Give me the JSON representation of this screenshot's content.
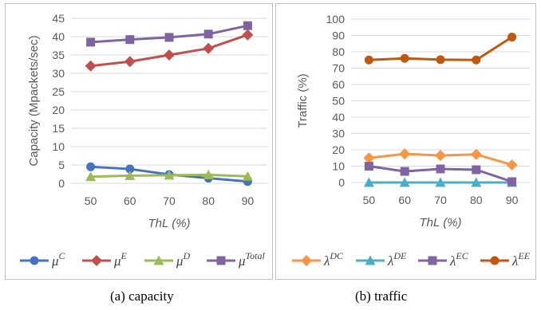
{
  "chart_data": [
    {
      "type": "line",
      "xlabel": "ThL (%)",
      "ylabel": "Capacity (Mpackets/sec)",
      "categories": [
        "50",
        "60",
        "70",
        "80",
        "90"
      ],
      "ylim": [
        0,
        45
      ],
      "yticks": [
        "0",
        "5",
        "10",
        "15",
        "20",
        "25",
        "30",
        "35",
        "40",
        "45"
      ],
      "grid": true,
      "legend": "bottom",
      "series": [
        {
          "name": "μ",
          "sup": "C",
          "color": "#4472C4",
          "marker": "circle",
          "values": [
            4.5,
            3.9,
            2.4,
            1.4,
            0.5
          ]
        },
        {
          "name": "μ",
          "sup": "E",
          "color": "#C0504D",
          "marker": "diamond",
          "values": [
            32.0,
            33.2,
            35.0,
            36.8,
            40.5
          ]
        },
        {
          "name": "μ",
          "sup": "D",
          "color": "#9BBB59",
          "marker": "triangle",
          "values": [
            1.8,
            2.1,
            2.2,
            2.3,
            1.9
          ]
        },
        {
          "name": "μ",
          "sup": "Total",
          "color": "#8064A2",
          "marker": "square",
          "values": [
            38.5,
            39.2,
            39.8,
            40.7,
            43.0
          ]
        }
      ]
    },
    {
      "type": "line",
      "xlabel": "ThL (%)",
      "ylabel": "Traffic  (%)",
      "categories": [
        "50",
        "60",
        "70",
        "80",
        "90"
      ],
      "ylim": [
        0,
        100
      ],
      "yticks": [
        "0",
        "10",
        "20",
        "30",
        "40",
        "50",
        "60",
        "70",
        "80",
        "90",
        "100"
      ],
      "grid": true,
      "legend": "bottom",
      "series": [
        {
          "name": "λ",
          "sup": "DC",
          "color": "#F79646",
          "marker": "diamond",
          "values": [
            15.0,
            17.5,
            16.5,
            17.2,
            10.8
          ]
        },
        {
          "name": "λ",
          "sup": "DE",
          "color": "#4BACC6",
          "marker": "triangle",
          "values": [
            0,
            0,
            0,
            0,
            0
          ]
        },
        {
          "name": "λ",
          "sup": "EC",
          "color": "#8064A2",
          "marker": "square",
          "values": [
            10.0,
            6.8,
            8.3,
            7.8,
            0.5
          ]
        },
        {
          "name": "λ",
          "sup": "EE",
          "color": "#C0580F",
          "marker": "circle",
          "values": [
            75.0,
            76.0,
            75.2,
            75.0,
            89.0
          ]
        }
      ]
    }
  ],
  "captions": {
    "a": "(a) capacity",
    "b": "(b) traffic"
  }
}
